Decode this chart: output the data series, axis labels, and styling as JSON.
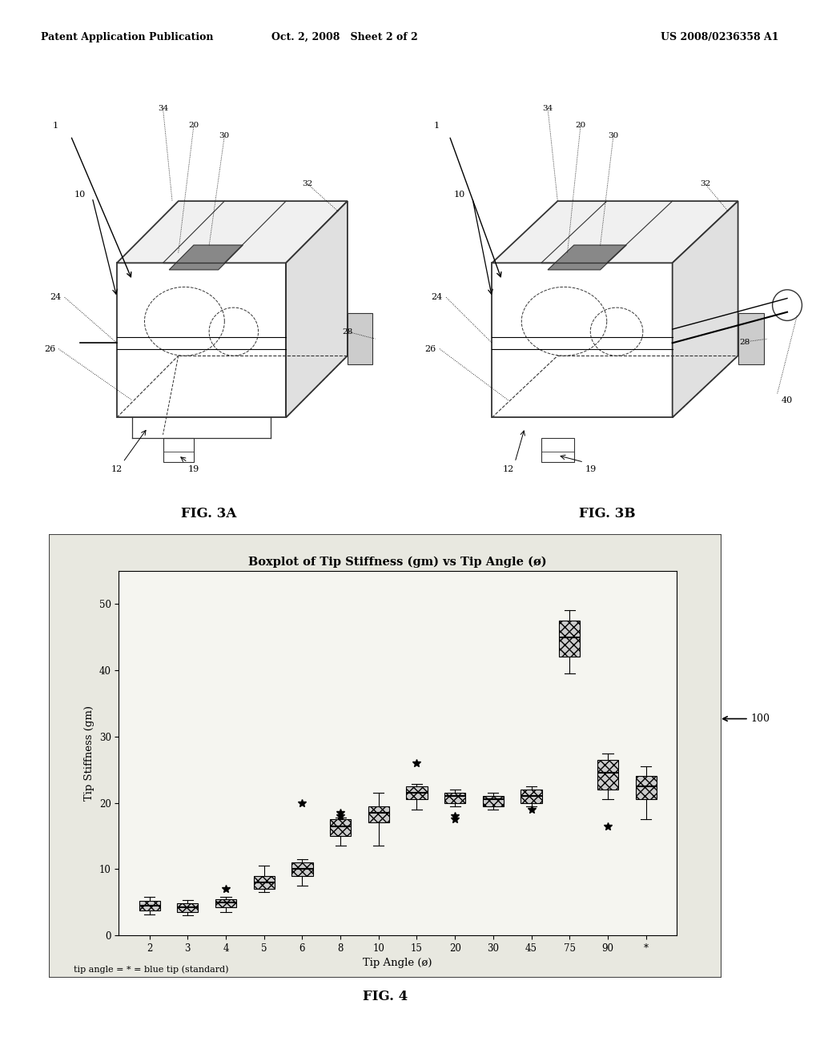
{
  "header_left": "Patent Application Publication",
  "header_mid": "Oct. 2, 2008   Sheet 2 of 2",
  "header_right": "US 2008/0236358 A1",
  "fig3a_label": "FIG. 3A",
  "fig3b_label": "FIG. 3B",
  "fig4_label": "FIG. 4",
  "plot_title": "Boxplot of Tip Stiffness (gm) vs Tip Angle (ø)",
  "xlabel": "Tip Angle (ø)",
  "ylabel": "Tip Stiffness (gm)",
  "footnote": "tip angle = * = blue tip (standard)",
  "label_100": "100",
  "xtick_labels": [
    "2",
    "3",
    "4",
    "5",
    "6",
    "8",
    "10",
    "15",
    "20",
    "30",
    "45",
    "75",
    "90",
    "*"
  ],
  "ytick_values": [
    0,
    10,
    20,
    30,
    40,
    50
  ],
  "ylim": [
    0,
    55
  ],
  "box_data": {
    "2": {
      "q1": 3.8,
      "med": 4.5,
      "q3": 5.2,
      "whislo": 3.2,
      "whishi": 5.8,
      "fliers": []
    },
    "3": {
      "q1": 3.5,
      "med": 4.2,
      "q3": 4.8,
      "whislo": 3.0,
      "whishi": 5.3,
      "fliers": []
    },
    "4": {
      "q1": 4.2,
      "med": 5.0,
      "q3": 5.5,
      "whislo": 3.5,
      "whishi": 5.8,
      "fliers": [
        7.0
      ]
    },
    "5": {
      "q1": 7.0,
      "med": 8.0,
      "q3": 9.0,
      "whislo": 6.5,
      "whishi": 10.5,
      "fliers": []
    },
    "6": {
      "q1": 9.0,
      "med": 10.0,
      "q3": 11.0,
      "whislo": 7.5,
      "whishi": 11.5,
      "fliers": [
        20.0
      ]
    },
    "8": {
      "q1": 15.0,
      "med": 16.5,
      "q3": 17.5,
      "whislo": 13.5,
      "whishi": 17.8,
      "fliers": [
        18.0,
        18.5
      ]
    },
    "10": {
      "q1": 17.0,
      "med": 18.5,
      "q3": 19.5,
      "whislo": 13.5,
      "whishi": 21.5,
      "fliers": []
    },
    "15": {
      "q1": 20.5,
      "med": 21.5,
      "q3": 22.5,
      "whislo": 19.0,
      "whishi": 22.8,
      "fliers": [
        26.0
      ]
    },
    "20": {
      "q1": 20.0,
      "med": 21.0,
      "q3": 21.5,
      "whislo": 19.5,
      "whishi": 22.0,
      "fliers": [
        17.5,
        18.0
      ]
    },
    "30": {
      "q1": 19.5,
      "med": 20.5,
      "q3": 21.0,
      "whislo": 19.0,
      "whishi": 21.5,
      "fliers": []
    },
    "45": {
      "q1": 20.0,
      "med": 21.0,
      "q3": 22.0,
      "whislo": 19.5,
      "whishi": 22.5,
      "fliers": [
        19.0
      ]
    },
    "75": {
      "q1": 42.0,
      "med": 45.0,
      "q3": 47.5,
      "whislo": 39.5,
      "whishi": 49.0,
      "fliers": []
    },
    "90": {
      "q1": 22.0,
      "med": 24.5,
      "q3": 26.5,
      "whislo": 20.5,
      "whishi": 27.5,
      "fliers": [
        16.5
      ]
    },
    "*": {
      "q1": 20.5,
      "med": 22.5,
      "q3": 24.0,
      "whislo": 17.5,
      "whishi": 25.5,
      "fliers": []
    }
  },
  "background_color": "#e8e8e0",
  "plot_bg": "#ffffff",
  "box_facecolor": "#d0d0d0",
  "median_color": "#000000",
  "fig_bg": "#ffffff"
}
